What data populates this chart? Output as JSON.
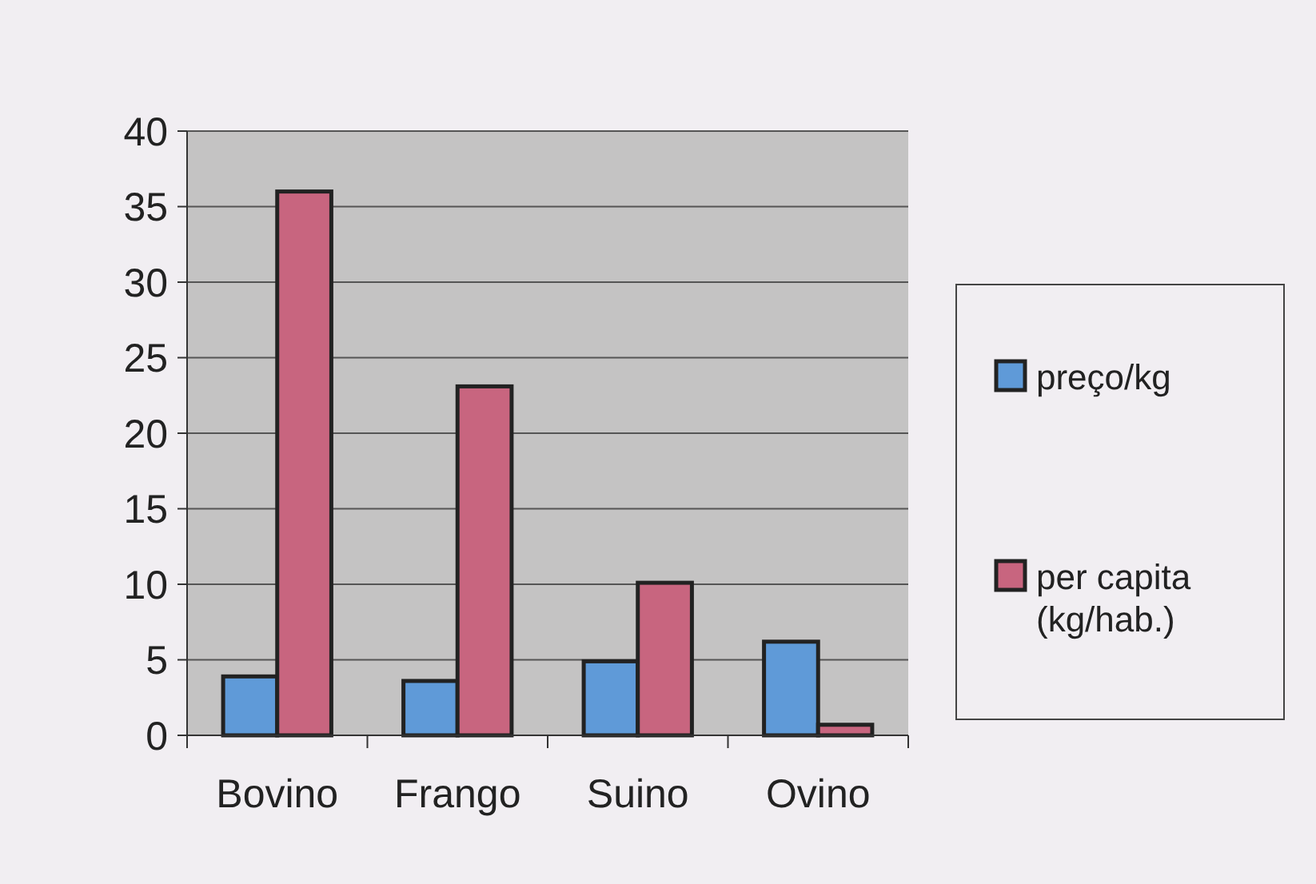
{
  "chart_data": {
    "type": "bar",
    "categories": [
      "Bovino",
      "Frango",
      "Suino",
      "Ovino"
    ],
    "series": [
      {
        "name": "preço/kg",
        "color": "#5f9ad8",
        "values": [
          3.9,
          3.6,
          4.9,
          6.2
        ]
      },
      {
        "name": "per capita (kg/hab.)",
        "color": "#c8657f",
        "values": [
          36,
          23.1,
          10.1,
          0.7
        ]
      }
    ],
    "ylim": [
      0,
      40
    ],
    "yticks": [
      0,
      5,
      10,
      15,
      20,
      25,
      30,
      35,
      40
    ],
    "grid": "y",
    "legend": "right"
  }
}
